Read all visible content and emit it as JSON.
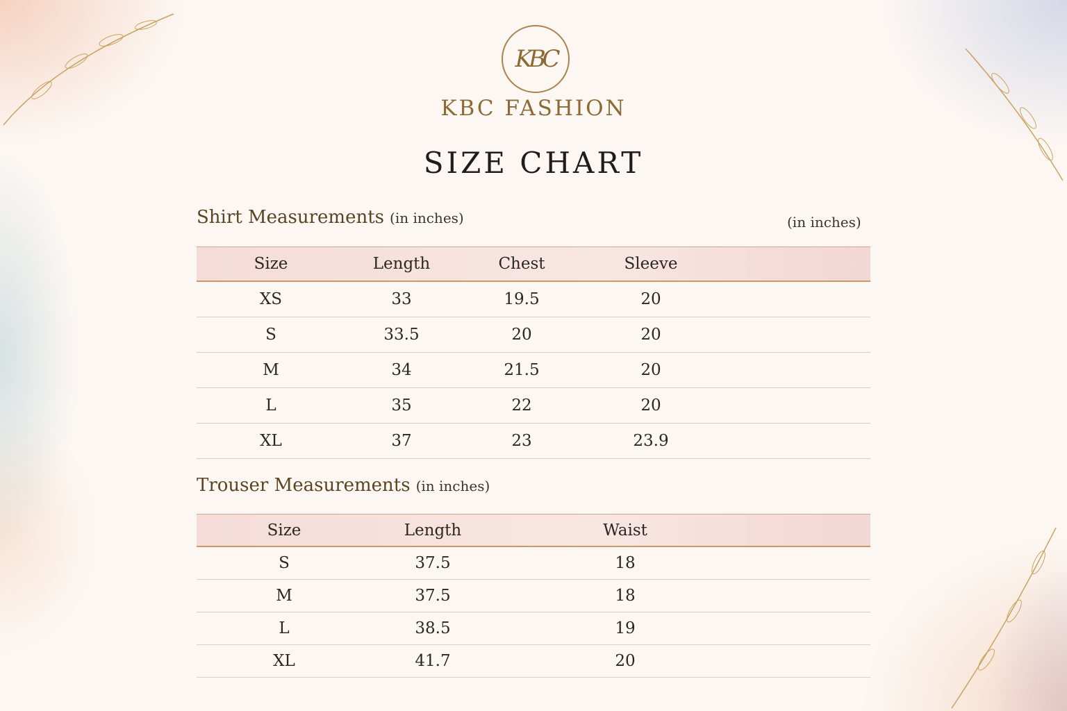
{
  "brand": {
    "logo_monogram": "KBC",
    "name": "KBC FASHION",
    "accent": "#8c6a34"
  },
  "title": "SIZE CHART",
  "shirt": {
    "heading": "Shirt Measurements",
    "unit": "(in inches)",
    "unit_right": "(in inches)",
    "columns": [
      "Size",
      "Length",
      "Chest",
      "Sleeve"
    ],
    "rows": [
      [
        "XS",
        "33",
        "19.5",
        "20"
      ],
      [
        "S",
        "33.5",
        "20",
        "20"
      ],
      [
        "M",
        "34",
        "21.5",
        "20"
      ],
      [
        "L",
        "35",
        "22",
        "20"
      ],
      [
        "XL",
        "37",
        "23",
        "23.9"
      ]
    ]
  },
  "trouser": {
    "heading": "Trouser Measurements",
    "unit": "(in inches)",
    "columns": [
      "Size",
      "Length",
      "Waist"
    ],
    "rows": [
      [
        "S",
        "37.5",
        "18"
      ],
      [
        "M",
        "37.5",
        "18"
      ],
      [
        "L",
        "38.5",
        "19"
      ],
      [
        "XL",
        "41.7",
        "20"
      ]
    ]
  }
}
